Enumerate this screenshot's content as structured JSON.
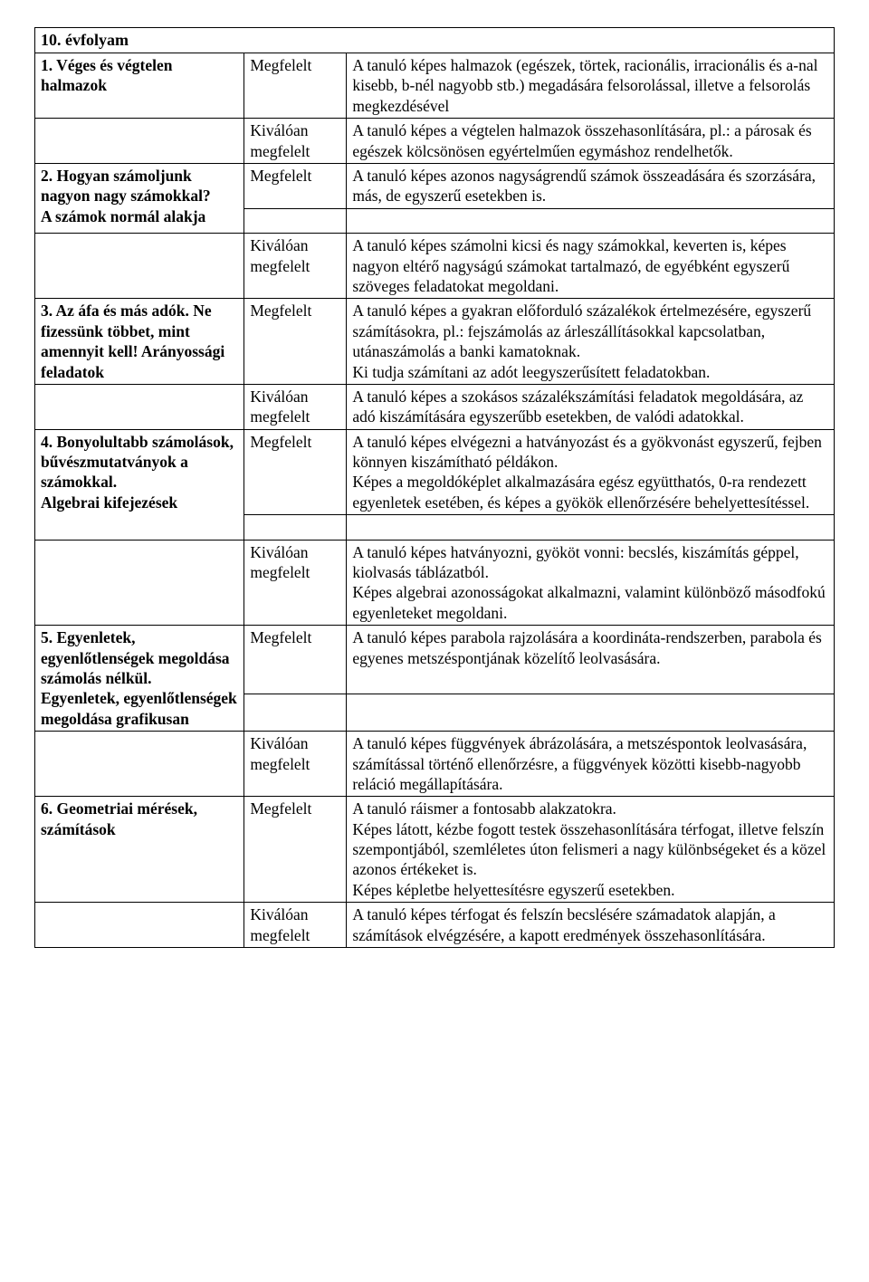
{
  "heading": "10. évfolyam",
  "labels": {
    "megfelelt": "Megfelelt",
    "kivaloan": "Kiválóan megfelelt"
  },
  "rows": [
    {
      "topic": "1. Véges és végtelen halmazok",
      "megfelelt": "A tanuló képes halmazok (egészek, törtek, racionális, irracionális és a-nal kisebb, b-nél nagyobb stb.) megadására felsorolással, illetve a felsorolás megkezdésével",
      "kivaloan": "A tanuló képes a végtelen halmazok összehasonlítására, pl.: a párosak és egészek kölcsönösen egyértelműen egymáshoz rendelhetők.",
      "spacer_after": false
    },
    {
      "topic": "2. Hogyan számoljunk nagyon nagy számokkal?\nA számok normál alakja",
      "megfelelt": "A tanuló képes azonos nagyságrendű számok összeadására és szorzására, más, de egyszerű esetekben is.",
      "kivaloan": "A tanuló képes számolni kicsi és nagy számokkal, keverten is, képes nagyon eltérő nagyságú számokat tartalmazó, de egyébként egyszerű szöveges feladatokat megoldani.",
      "spacer_after": true
    },
    {
      "topic": "3. Az áfa és más adók. Ne fizessünk többet, mint amennyit kell! Arányossági feladatok",
      "megfelelt": "A tanuló képes a gyakran előforduló százalékok értelmezésére, egyszerű számításokra, pl.: fejszámolás az árleszállításokkal kapcsolatban, utánaszámolás a banki kamatoknak.\nKi tudja számítani az adót leegyszerűsített feladatokban.",
      "kivaloan": "A tanuló képes a szokásos százalékszámítási feladatok megoldására, az adó kiszámítására egyszerűbb esetekben, de valódi adatokkal.",
      "spacer_after": false
    },
    {
      "topic": "4. Bonyolultabb számolások, bűvészmutatványok a számokkal.\nAlgebrai kifejezések",
      "megfelelt": "A tanuló képes elvégezni a hatványozást és a gyökvonást egyszerű, fejben könnyen kiszámítható példákon.\nKépes a megoldóképlet alkalmazására egész együtthatós, 0-ra rendezett egyenletek esetében, és képes a gyökök ellenőrzésére behelyettesítéssel.",
      "kivaloan": "A tanuló képes hatványozni, gyököt vonni: becslés, kiszámítás géppel, kiolvasás táblázatból.\nKépes algebrai azonosságokat alkalmazni, valamint különböző másodfokú egyenleteket megoldani.",
      "spacer_after": true
    },
    {
      "topic": "5. Egyenletek, egyenlőtlenségek megoldása számolás nélkül.\nEgyenletek, egyenlőtlenségek megoldása grafikusan",
      "megfelelt": "A tanuló képes parabola rajzolására a koordináta-rendszerben, parabola és egyenes metszéspontjának közelítő leolvasására.",
      "kivaloan": "A tanuló képes függvények ábrázolására, a metszéspontok leolvasására, számítással történő ellenőrzésre, a függvények közötti kisebb-nagyobb reláció megállapítására.",
      "spacer_after": true
    },
    {
      "topic": "6. Geometriai mérések, számítások",
      "megfelelt": "A tanuló ráismer a fontosabb alakzatokra.\nKépes látott, kézbe fogott testek összehasonlítására térfogat, illetve felszín szempontjából, szemléletes úton felismeri a nagy különbségeket és a közel azonos értékeket is.\nKépes képletbe helyettesítésre egyszerű esetekben.",
      "kivaloan": "A tanuló képes térfogat és felszín becslésére számadatok alapján, a számítások elvégzésére, a kapott eredmények összehasonlítására.",
      "spacer_after": false
    }
  ]
}
